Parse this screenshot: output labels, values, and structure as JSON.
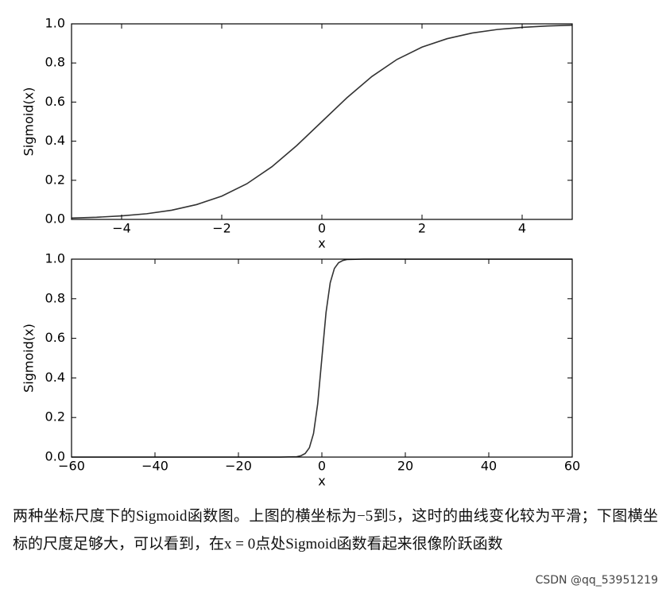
{
  "chart_data": [
    {
      "type": "line",
      "xlabel": "x",
      "ylabel": "Sigmoid(x)",
      "color": "#333333",
      "x": [
        -5,
        -4.5,
        -4,
        -3.5,
        -3,
        -2.5,
        -2,
        -1.5,
        -1,
        -0.5,
        0,
        0.5,
        1,
        1.5,
        2,
        2.5,
        3,
        3.5,
        4,
        4.5,
        5
      ],
      "values": [
        0.007,
        0.011,
        0.018,
        0.029,
        0.047,
        0.076,
        0.119,
        0.182,
        0.269,
        0.378,
        0.5,
        0.622,
        0.731,
        0.818,
        0.881,
        0.924,
        0.953,
        0.971,
        0.982,
        0.989,
        0.993
      ],
      "xlim": [
        -5,
        5
      ],
      "ylim": [
        0,
        1
      ],
      "xticks": [
        {
          "value": -4,
          "label": "−4"
        },
        {
          "value": -2,
          "label": "−2"
        },
        0,
        2,
        4
      ],
      "yticks": [
        {
          "value": 0,
          "label": "0.0"
        },
        0.2,
        0.4,
        0.6,
        0.8,
        {
          "value": 1,
          "label": "1.0"
        }
      ]
    },
    {
      "type": "line",
      "xlabel": "x",
      "ylabel": "Sigmoid(x)",
      "color": "#333333",
      "x": [
        -60,
        -40,
        -20,
        -10,
        -6,
        -5,
        -4,
        -3,
        -2,
        -1,
        0,
        1,
        2,
        3,
        4,
        5,
        6,
        10,
        20,
        40,
        60
      ],
      "values": [
        0,
        0,
        0,
        0,
        0.002,
        0.007,
        0.018,
        0.047,
        0.119,
        0.269,
        0.5,
        0.731,
        0.881,
        0.953,
        0.982,
        0.993,
        0.998,
        1,
        1,
        1,
        1
      ],
      "xlim": [
        -60,
        60
      ],
      "ylim": [
        0,
        1
      ],
      "xticks": [
        {
          "value": -60,
          "label": "−60"
        },
        {
          "value": -40,
          "label": "−40"
        },
        {
          "value": -20,
          "label": "−20"
        },
        0,
        20,
        40,
        60
      ],
      "yticks": [
        {
          "value": 0,
          "label": "0.0"
        },
        0.2,
        0.4,
        0.6,
        0.8,
        {
          "value": 1,
          "label": "1.0"
        }
      ]
    }
  ],
  "caption": "两种坐标尺度下的Sigmoid函数图。上图的横坐标为−5到5，这时的曲线变化较为平滑；下图横坐标的尺度足够大，可以看到，在x = 0点处Sigmoid函数看起来很像阶跃函数",
  "watermark": "CSDN @qq_53951219"
}
